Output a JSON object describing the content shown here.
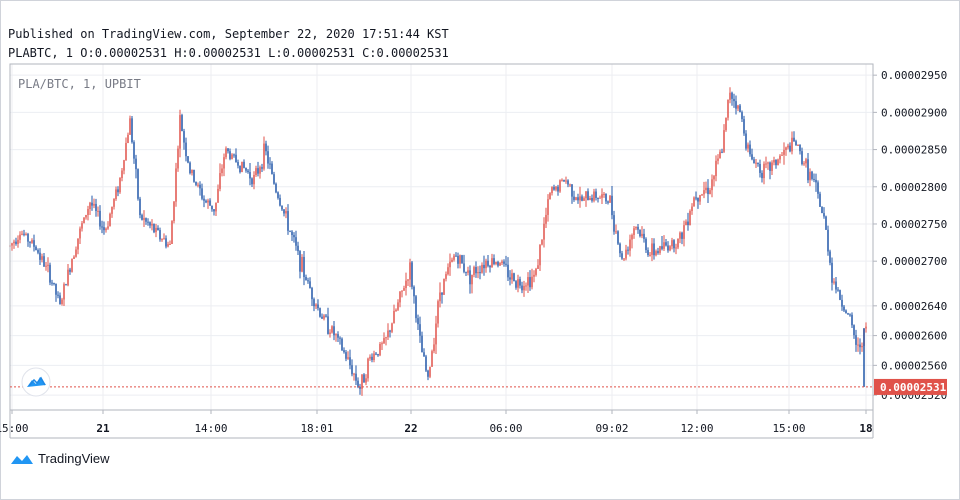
{
  "header": {
    "published": "Published on TradingView.com, September 22, 2020 17:51:44 KST",
    "symbol_interval": "PLABTC, 1",
    "o_label": "O:",
    "o_value": "0.00002531",
    "h_label": "H:",
    "h_value": "0.00002531",
    "l_label": "L:",
    "l_value": "0.00002531",
    "c_label": "C:",
    "c_value": "0.00002531"
  },
  "watermark": "PLA/BTC, 1, UPBIT",
  "footer": {
    "brand": "TradingView",
    "logo_icon": "tradingview-logo-icon"
  },
  "colors": {
    "up": "#e0524a",
    "down": "#2157a8",
    "grid": "#eceef2",
    "last_price": "#e0524a",
    "axis": "#131722"
  },
  "chart_data": {
    "type": "candlestick",
    "title": "PLA/BTC, 1, UPBIT",
    "ylim": [
      2.5e-05,
      2.965e-05
    ],
    "y_ticks": [
      2.52e-05,
      2.56e-05,
      2.6e-05,
      2.64e-05,
      2.7e-05,
      2.75e-05,
      2.8e-05,
      2.85e-05,
      2.9e-05,
      2.95e-05
    ],
    "y_tick_labels": [
      "0.00002520",
      "0.00002560",
      "0.00002600",
      "0.00002640",
      "0.00002700",
      "0.00002750",
      "0.00002800",
      "0.00002850",
      "0.00002900",
      "0.00002950"
    ],
    "x_tick_labels": [
      "15:00",
      "21",
      "14:00",
      "18:01",
      "22",
      "06:00",
      "09:02",
      "12:00",
      "15:00",
      "18"
    ],
    "x_tick_bold": [
      false,
      true,
      false,
      false,
      true,
      false,
      false,
      false,
      false,
      true
    ],
    "x_range": [
      0,
      860
    ],
    "x_tick_positions": [
      12,
      103,
      211,
      317,
      411,
      506,
      612,
      697,
      789,
      866
    ],
    "last_price": 2.531e-05,
    "last_price_label": "0.00002531",
    "grid": true,
    "price_path": [
      [
        0,
        2.72e-05
      ],
      [
        10,
        2.74e-05
      ],
      [
        25,
        2.72e-05
      ],
      [
        40,
        2.68e-05
      ],
      [
        50,
        2.64e-05
      ],
      [
        65,
        2.72e-05
      ],
      [
        80,
        2.78e-05
      ],
      [
        95,
        2.74e-05
      ],
      [
        110,
        2.81e-05
      ],
      [
        120,
        2.89e-05
      ],
      [
        130,
        2.76e-05
      ],
      [
        145,
        2.74e-05
      ],
      [
        160,
        2.72e-05
      ],
      [
        170,
        2.89e-05
      ],
      [
        180,
        2.82e-05
      ],
      [
        195,
        2.78e-05
      ],
      [
        205,
        2.77e-05
      ],
      [
        215,
        2.85e-05
      ],
      [
        230,
        2.83e-05
      ],
      [
        245,
        2.81e-05
      ],
      [
        255,
        2.85e-05
      ],
      [
        265,
        2.8e-05
      ],
      [
        280,
        2.74e-05
      ],
      [
        295,
        2.68e-05
      ],
      [
        310,
        2.63e-05
      ],
      [
        325,
        2.6e-05
      ],
      [
        340,
        2.56e-05
      ],
      [
        350,
        2.53e-05
      ],
      [
        360,
        2.57e-05
      ],
      [
        375,
        2.59e-05
      ],
      [
        390,
        2.65e-05
      ],
      [
        400,
        2.69e-05
      ],
      [
        410,
        2.59e-05
      ],
      [
        418,
        2.54e-05
      ],
      [
        430,
        2.66e-05
      ],
      [
        445,
        2.71e-05
      ],
      [
        460,
        2.68e-05
      ],
      [
        475,
        2.7e-05
      ],
      [
        490,
        2.7e-05
      ],
      [
        500,
        2.68e-05
      ],
      [
        510,
        2.67e-05
      ],
      [
        525,
        2.68e-05
      ],
      [
        540,
        2.79e-05
      ],
      [
        555,
        2.81e-05
      ],
      [
        570,
        2.78e-05
      ],
      [
        585,
        2.79e-05
      ],
      [
        600,
        2.78e-05
      ],
      [
        612,
        2.7e-05
      ],
      [
        625,
        2.75e-05
      ],
      [
        640,
        2.71e-05
      ],
      [
        655,
        2.72e-05
      ],
      [
        670,
        2.73e-05
      ],
      [
        685,
        2.79e-05
      ],
      [
        700,
        2.8e-05
      ],
      [
        712,
        2.85e-05
      ],
      [
        720,
        2.93e-05
      ],
      [
        730,
        2.9e-05
      ],
      [
        740,
        2.84e-05
      ],
      [
        755,
        2.82e-05
      ],
      [
        770,
        2.84e-05
      ],
      [
        785,
        2.86e-05
      ],
      [
        795,
        2.83e-05
      ],
      [
        805,
        2.8e-05
      ],
      [
        815,
        2.75e-05
      ],
      [
        822,
        2.68e-05
      ],
      [
        830,
        2.65e-05
      ],
      [
        840,
        2.62e-05
      ],
      [
        848,
        2.58e-05
      ],
      [
        855,
        2.61e-05
      ],
      [
        863,
        2.58e-05
      ],
      [
        866,
        2.531e-05
      ]
    ]
  }
}
